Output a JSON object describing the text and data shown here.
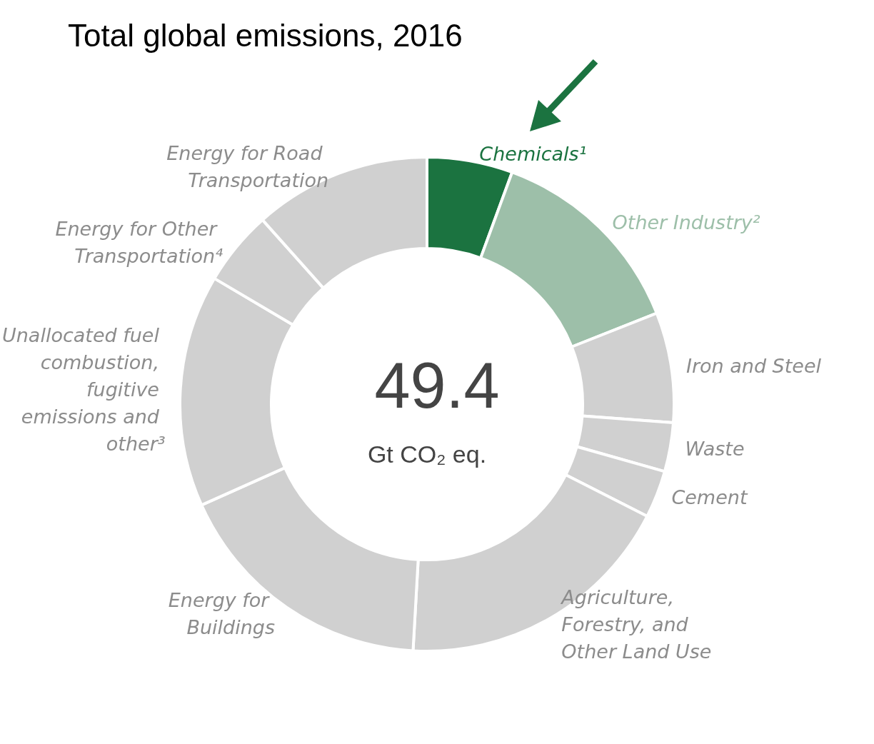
{
  "chart_data": {
    "type": "donut",
    "title": "Total global emissions, 2016",
    "categories": [
      "Chemicals¹",
      "Other Industry²",
      "Iron and Steel",
      "Waste",
      "Cement",
      "Agriculture, Forestry, and Other Land Use",
      "Energy for Buildings",
      "Unallocated fuel combustion, fugitive emissions and other³",
      "Energy for Other Transportation⁴",
      "Energy for Road Transportation"
    ],
    "values": [
      5.6,
      13.4,
      7.2,
      3.2,
      3.1,
      18.4,
      17.4,
      15.2,
      4.9,
      11.6
    ],
    "colors": [
      "#1b7340",
      "#9dbfa9",
      "#d0d0d0",
      "#d0d0d0",
      "#d0d0d0",
      "#d0d0d0",
      "#d0d0d0",
      "#d0d0d0",
      "#d0d0d0",
      "#d0d0d0"
    ],
    "annotations": [
      "49.4",
      "Gt CO₂ eq."
    ]
  }
}
